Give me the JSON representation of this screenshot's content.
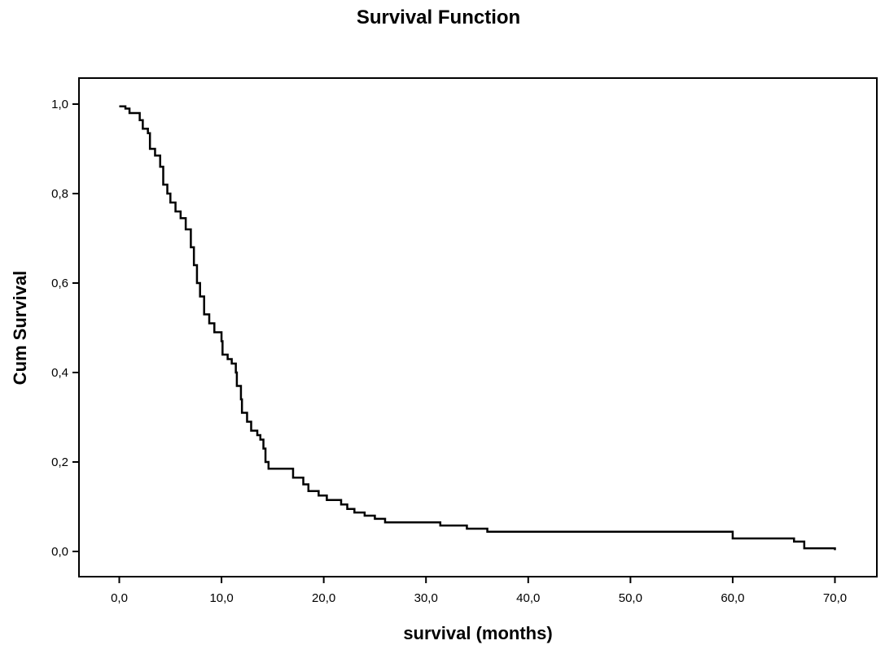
{
  "chart_data": {
    "type": "line",
    "step": true,
    "title": "Survival Function",
    "xlabel": "survival (months)",
    "ylabel": "Cum Survival",
    "xlim": [
      0,
      70
    ],
    "ylim": [
      0,
      1
    ],
    "xticks": [
      "0,0",
      "10,0",
      "20,0",
      "30,0",
      "40,0",
      "50,0",
      "60,0",
      "70,0"
    ],
    "yticks": [
      "0,0",
      "0,2",
      "0,4",
      "0,6",
      "0,8",
      "1,0"
    ],
    "grid": false,
    "line_color": "#000000",
    "series": [
      {
        "x": [
          0,
          0.6,
          1.0,
          2.0,
          2.3,
          2.8,
          3.0,
          3.5,
          4.0,
          4.3,
          4.7,
          5.0,
          5.5,
          6.0,
          6.5,
          7.0,
          7.3,
          7.6,
          7.9,
          8.3,
          8.8,
          9.3,
          10.0,
          10.1,
          10.6,
          11.0,
          11.4,
          11.5,
          11.9,
          12.0,
          12.5,
          12.9,
          13.5,
          13.8,
          14.1,
          14.3,
          14.6,
          17.0,
          18.0,
          18.5,
          19.5,
          20.3,
          21.7,
          22.3,
          23.0,
          24.0,
          25.0,
          26.0,
          31.4,
          34.0,
          36.0,
          60.0,
          66.0,
          67.0,
          70.0
        ],
        "y": [
          0.995,
          0.99,
          0.98,
          0.964,
          0.945,
          0.935,
          0.9,
          0.885,
          0.86,
          0.82,
          0.8,
          0.78,
          0.76,
          0.745,
          0.72,
          0.68,
          0.64,
          0.6,
          0.57,
          0.53,
          0.51,
          0.49,
          0.47,
          0.44,
          0.43,
          0.42,
          0.4,
          0.37,
          0.34,
          0.31,
          0.29,
          0.27,
          0.26,
          0.25,
          0.23,
          0.2,
          0.185,
          0.165,
          0.15,
          0.135,
          0.125,
          0.115,
          0.105,
          0.095,
          0.087,
          0.08,
          0.073,
          0.065,
          0.058,
          0.051,
          0.044,
          0.029,
          0.022,
          0.007,
          0.003
        ]
      }
    ]
  }
}
